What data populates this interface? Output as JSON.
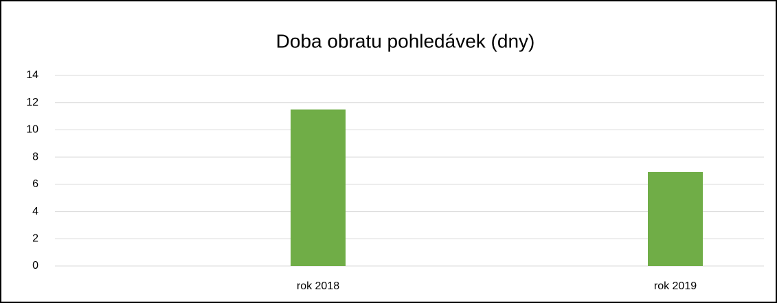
{
  "chart_data": {
    "type": "bar",
    "title": "Doba obratu pohledávek (dny)",
    "categories": [
      "rok 2018",
      "rok 2019"
    ],
    "values": [
      11.5,
      6.9
    ],
    "color": "#70ad47",
    "ylim": [
      0,
      14
    ],
    "yticks": [
      0,
      2,
      4,
      6,
      8,
      10,
      12,
      14
    ],
    "grid": true
  }
}
